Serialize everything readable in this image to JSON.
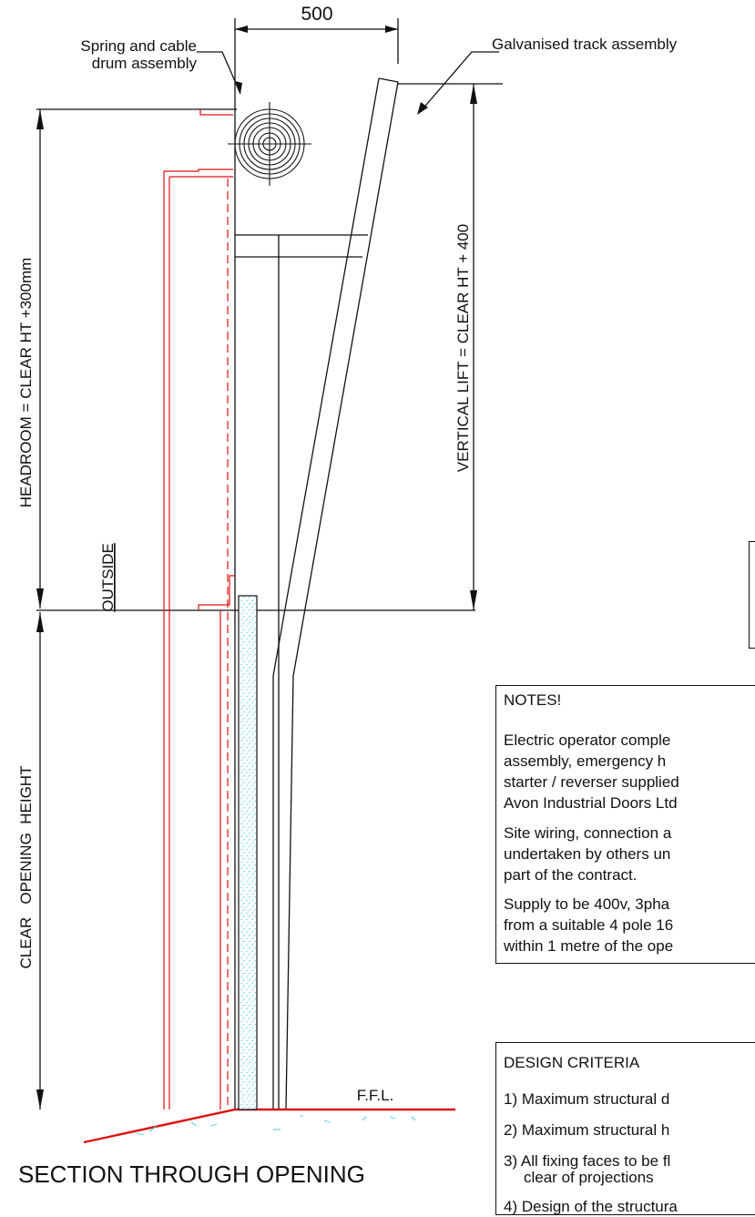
{
  "dimension_top": "500",
  "labels": {
    "spring_drum": [
      "Spring and cable",
      "drum assembly"
    ],
    "track": "Galvanised track assembly",
    "headroom": "HEADROOM = CLEAR HT +300mm",
    "vertical_lift": "VERTICAL LIFT = CLEAR HT + 400",
    "clear_opening": "CLEAR   OPENING  HEIGHT",
    "outside": "OUTSIDE",
    "ffl": "F.F.L.",
    "section_title": "SECTION THROUGH OPENING"
  },
  "notes": {
    "title": "NOTES!",
    "para1": [
      "Electric operator comple",
      "assembly, emergency h",
      "starter / reverser supplied",
      "Avon Industrial Doors Ltd"
    ],
    "para2": [
      "Site wiring, connection a",
      "undertaken by others un",
      "part of the contract."
    ],
    "para3": [
      "Supply to be 400v, 3pha",
      "from a suitable 4 pole 16",
      "within 1 metre of the ope"
    ]
  },
  "design_criteria": {
    "title": "DESIGN CRITERIA",
    "items": [
      "1) Maximum structural d",
      "2) Maximum structural h",
      "3) All fixing faces to be fl",
      "clear of projections",
      "4) Design of the structura"
    ]
  },
  "colors": {
    "ink": "#111111",
    "red": "#e01010",
    "cyan": "#38c8e0"
  }
}
